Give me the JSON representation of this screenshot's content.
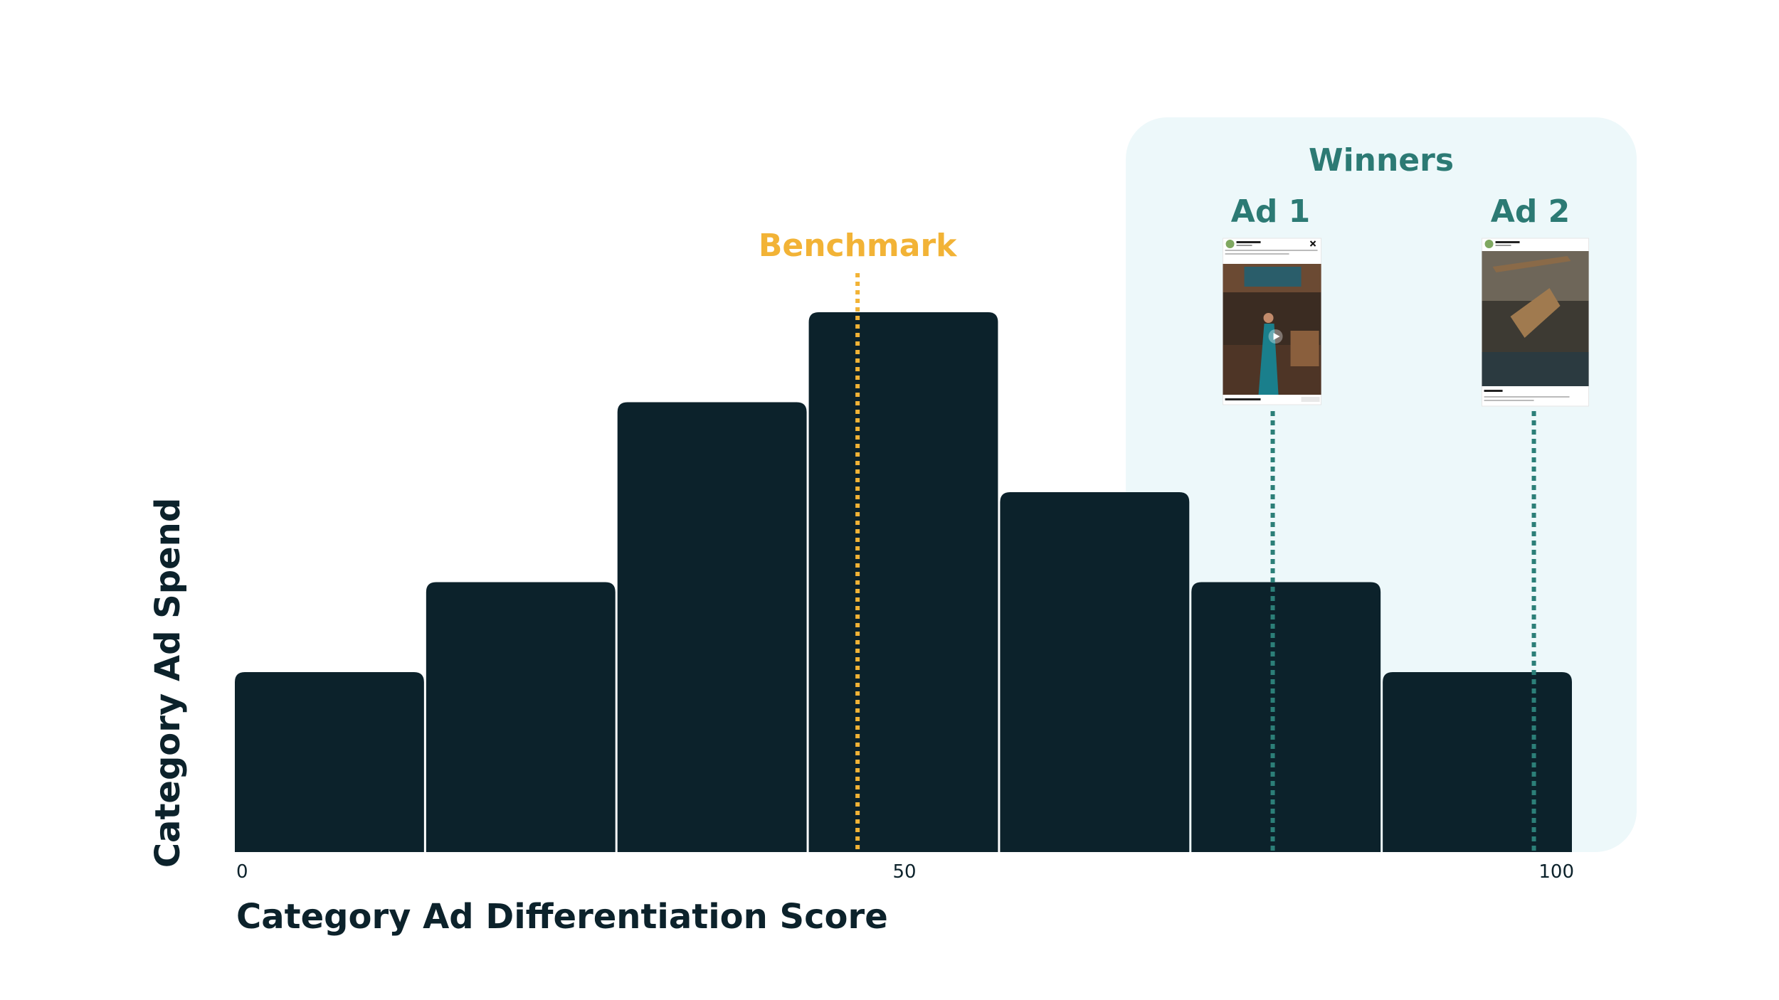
{
  "chart_data": {
    "type": "bar",
    "title": "",
    "xlabel": "Category Ad Differentiation Score",
    "ylabel": "Category Ad Spend",
    "xlim": [
      0,
      100
    ],
    "ylim": [
      0,
      6
    ],
    "x_ticks": [
      "0",
      "50",
      "100"
    ],
    "categories": [
      "0–14.3",
      "14.3–28.6",
      "28.6–42.9",
      "42.9–57.1",
      "57.1–71.4",
      "71.4–85.7",
      "85.7–100"
    ],
    "values": [
      2,
      3,
      5,
      6,
      4,
      3,
      2
    ],
    "grid": false,
    "benchmark": {
      "label": "Benchmark",
      "x": 46.5
    },
    "winners": {
      "label": "Winners",
      "x_range": [
        66,
        100
      ],
      "ads": [
        {
          "label": "Ad 1",
          "x": 77.5
        },
        {
          "label": "Ad 2",
          "x": 97
        }
      ]
    }
  },
  "colors": {
    "bar": "#0c222b",
    "benchmark": "#f2b336",
    "winners_text": "#2c7a74",
    "winners_line": "#2c7f78",
    "winners_bg": "#edf8fa"
  },
  "icons": [
    "play-icon",
    "close-icon"
  ]
}
